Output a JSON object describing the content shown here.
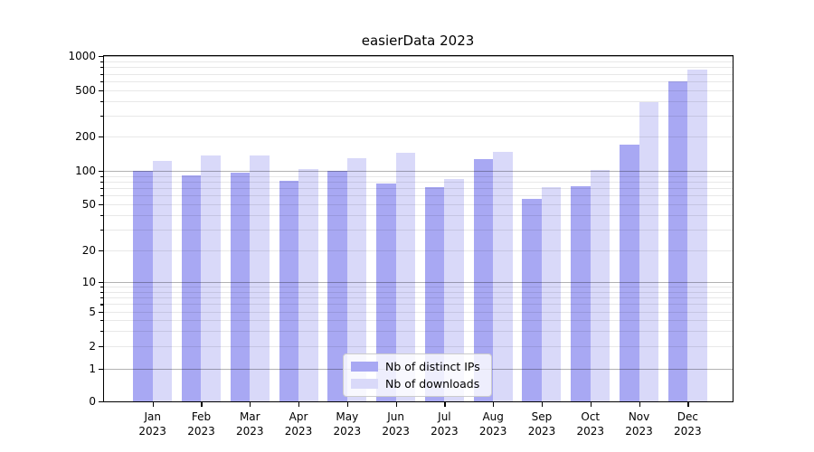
{
  "chart_data": {
    "type": "bar",
    "title": "easierData 2023",
    "yscale": "symlog",
    "ylim": [
      0,
      1000
    ],
    "ytick_values": [
      0,
      1,
      2,
      5,
      10,
      20,
      50,
      100,
      200,
      500,
      1000
    ],
    "grid": "horizontal, major and minor",
    "legend_position": "lower center",
    "months": [
      "Jan",
      "Feb",
      "Mar",
      "Apr",
      "May",
      "Jun",
      "Jul",
      "Aug",
      "Sep",
      "Oct",
      "Nov",
      "Dec"
    ],
    "year": "2023",
    "categories": [
      "Jan 2023",
      "Feb 2023",
      "Mar 2023",
      "Apr 2023",
      "May 2023",
      "Jun 2023",
      "Jul 2023",
      "Aug 2023",
      "Sep 2023",
      "Oct 2023",
      "Nov 2023",
      "Dec 2023"
    ],
    "series": [
      {
        "name": "Nb of distinct IPs",
        "color": "#a8a8f3",
        "values": [
          100,
          91,
          97,
          81,
          100,
          76,
          71,
          127,
          56,
          72,
          170,
          600
        ]
      },
      {
        "name": "Nb of downloads",
        "color": "#d9d9f9",
        "values": [
          122,
          135,
          137,
          104,
          128,
          144,
          84,
          146,
          71,
          102,
          395,
          755
        ]
      }
    ]
  }
}
